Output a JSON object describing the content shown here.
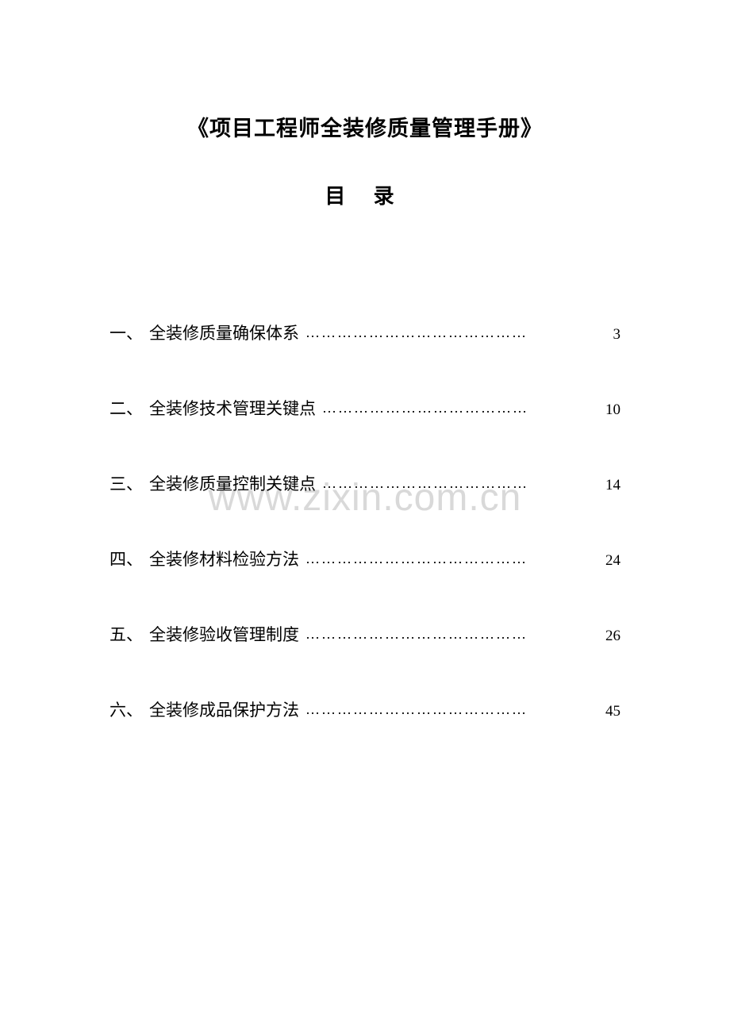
{
  "document": {
    "title": "《项目工程师全装修质量管理手册》",
    "subtitle": "目 录",
    "watermark": "www.zixin.com.cn",
    "background_color": "#ffffff",
    "text_color": "#000000",
    "watermark_color": "rgba(180, 180, 180, 0.5)",
    "title_fontsize": 27,
    "subtitle_fontsize": 26,
    "toc_fontsize": 21,
    "page_fontsize": 19,
    "watermark_fontsize": 48
  },
  "toc": {
    "items": [
      {
        "number": "一、",
        "text": "全装修质量确保体系",
        "dots": "……………………………………",
        "page": "3"
      },
      {
        "number": "二、",
        "text": "全装修技术管理关键点",
        "dots": "…………………………………",
        "page": "10"
      },
      {
        "number": "三、",
        "text": "全装修质量控制关键点",
        "dots": "…………………………………",
        "page": "14"
      },
      {
        "number": "四、",
        "text": "全装修材料检验方法",
        "dots": "……………………………………",
        "page": "24"
      },
      {
        "number": "五、",
        "text": "全装修验收管理制度",
        "dots": "……………………………………",
        "page": "26"
      },
      {
        "number": "六、",
        "text": "全装修成品保护方法",
        "dots": "……………………………………",
        "page": "45"
      }
    ]
  }
}
